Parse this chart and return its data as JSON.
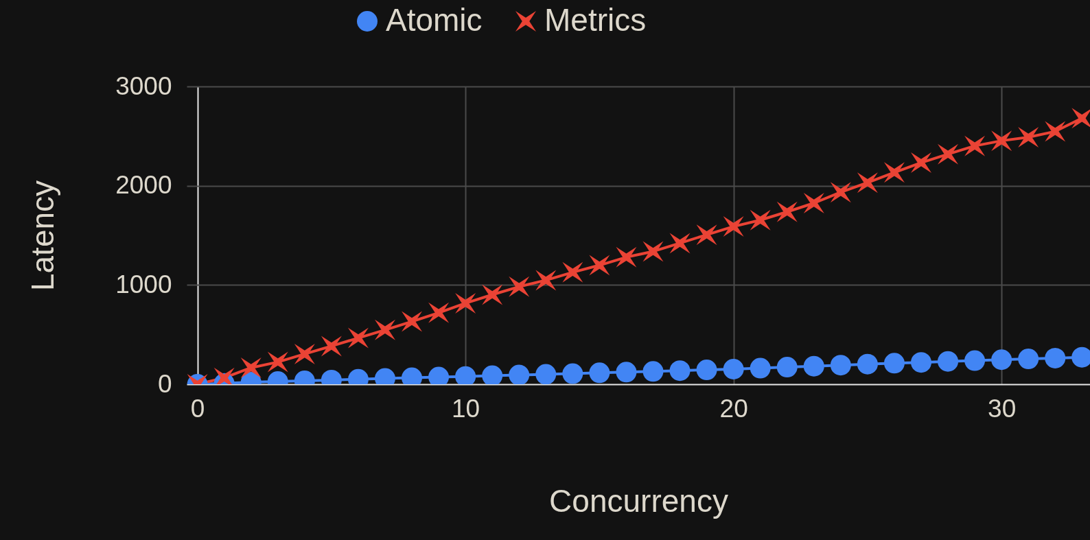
{
  "chart_data": {
    "type": "line",
    "xlabel": "Concurrency",
    "ylabel": "Latency",
    "x": [
      0,
      1,
      2,
      3,
      4,
      5,
      6,
      7,
      8,
      9,
      10,
      11,
      12,
      13,
      14,
      15,
      16,
      17,
      18,
      19,
      20,
      21,
      22,
      23,
      24,
      25,
      26,
      27,
      28,
      29,
      30,
      31,
      32,
      33
    ],
    "series": [
      {
        "name": "Atomic",
        "color": "#4285f4",
        "marker": "circle",
        "values": [
          0,
          8,
          20,
          27,
          34,
          42,
          50,
          58,
          65,
          72,
          78,
          86,
          93,
          100,
          107,
          115,
          122,
          129,
          137,
          145,
          152,
          162,
          172,
          182,
          192,
          203,
          212,
          220,
          230,
          238,
          247,
          255,
          263,
          272
        ]
      },
      {
        "name": "Metrics",
        "color": "#ea4335",
        "marker": "cross",
        "values": [
          0,
          64,
          166,
          224,
          305,
          384,
          466,
          547,
          632,
          720,
          816,
          902,
          983,
          1048,
          1128,
          1199,
          1280,
          1338,
          1421,
          1506,
          1589,
          1654,
          1737,
          1825,
          1934,
          2031,
          2134,
          2232,
          2318,
          2401,
          2453,
          2488,
          2547,
          2680
        ]
      }
    ],
    "xlim": [
      -0.4,
      33.3
    ],
    "ylim": [
      0,
      3000
    ],
    "xticks": [
      0,
      10,
      20,
      30
    ],
    "yticks": [
      0,
      1000,
      2000,
      3000
    ],
    "grid": true,
    "legend": "top",
    "line_style": "solid"
  }
}
